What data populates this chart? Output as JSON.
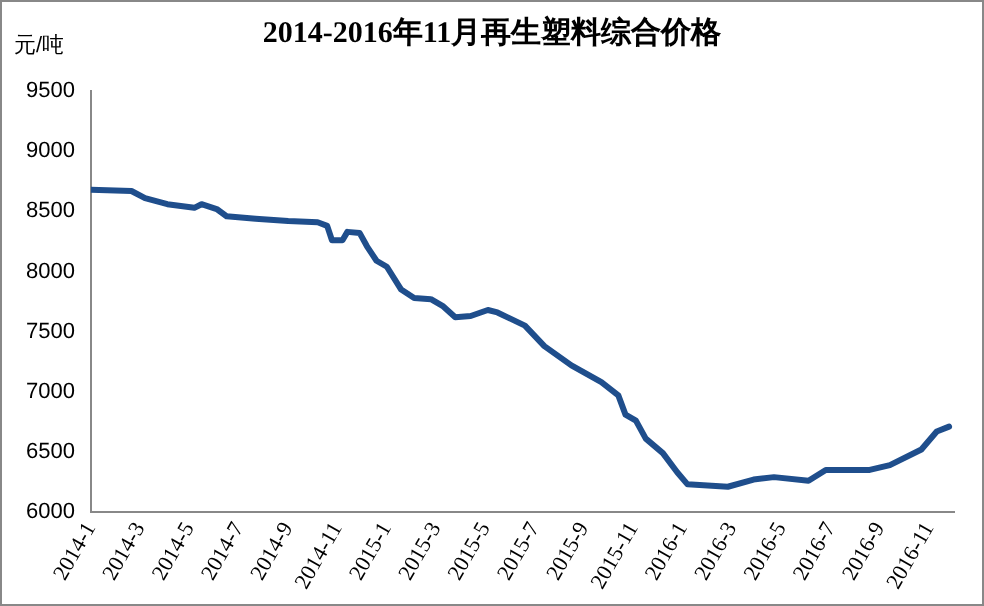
{
  "chart_data": {
    "type": "line",
    "title": "2014-2016年11月再生塑料综合价格",
    "ylabel": "元/吨",
    "x": [
      "2014-01-01",
      "2014-02-19",
      "2014-03-07",
      "2014-04-04",
      "2014-05-07",
      "2014-05-16",
      "2014-06-04",
      "2014-06-16",
      "2014-07-22",
      "2014-09-01",
      "2014-10-07",
      "2014-10-19",
      "2014-10-25",
      "2014-11-07",
      "2014-11-13",
      "2014-11-28",
      "2014-12-07",
      "2014-12-19",
      "2015-01-01",
      "2015-01-19",
      "2015-02-04",
      "2015-02-23",
      "2015-03-10",
      "2015-03-25",
      "2015-04-13",
      "2015-05-04",
      "2015-05-16",
      "2015-06-19",
      "2015-07-13",
      "2015-08-16",
      "2015-09-22",
      "2015-10-13",
      "2015-10-22",
      "2015-11-04",
      "2015-11-16",
      "2015-12-07",
      "2015-12-25",
      "2016-01-07",
      "2016-02-25",
      "2016-03-28",
      "2016-04-22",
      "2016-06-04",
      "2016-06-25",
      "2016-08-19",
      "2016-09-13",
      "2016-10-22",
      "2016-11-10",
      "2016-11-25"
    ],
    "series": [
      {
        "color": "#1f4e8c",
        "values": [
          8680,
          8670,
          8610,
          8560,
          8530,
          8560,
          8520,
          8460,
          8440,
          8420,
          8410,
          8380,
          8260,
          8260,
          8330,
          8320,
          8210,
          8090,
          8040,
          7850,
          7780,
          7770,
          7710,
          7620,
          7630,
          7680,
          7660,
          7550,
          7380,
          7220,
          7080,
          6970,
          6810,
          6760,
          6610,
          6490,
          6330,
          6230,
          6210,
          6270,
          6290,
          6260,
          6350,
          6350,
          6390,
          6520,
          6670,
          6710
        ]
      }
    ],
    "xlim": [
      "2014-01-01",
      "2016-12-01"
    ],
    "xticks": [
      {
        "value": "2014-01",
        "label": "2014-1"
      },
      {
        "value": "2014-03",
        "label": "2014-3"
      },
      {
        "value": "2014-05",
        "label": "2014-5"
      },
      {
        "value": "2014-07",
        "label": "2014-7"
      },
      {
        "value": "2014-09",
        "label": "2014-9"
      },
      {
        "value": "2014-11",
        "label": "2014-11"
      },
      {
        "value": "2015-01",
        "label": "2015-1"
      },
      {
        "value": "2015-03",
        "label": "2015-3"
      },
      {
        "value": "2015-05",
        "label": "2015-5"
      },
      {
        "value": "2015-07",
        "label": "2015-7"
      },
      {
        "value": "2015-09",
        "label": "2015-9"
      },
      {
        "value": "2015-11",
        "label": "2015-11"
      },
      {
        "value": "2016-01",
        "label": "2016-1"
      },
      {
        "value": "2016-03",
        "label": "2016-3"
      },
      {
        "value": "2016-05",
        "label": "2016-5"
      },
      {
        "value": "2016-07",
        "label": "2016-7"
      },
      {
        "value": "2016-09",
        "label": "2016-9"
      },
      {
        "value": "2016-11",
        "label": "2016-11"
      }
    ],
    "ylim": [
      6000,
      9500
    ],
    "yticks": [
      6000,
      6500,
      7000,
      7500,
      8000,
      8500,
      9000,
      9500
    ],
    "grid": false,
    "legend": false,
    "marker": "none",
    "line_style": "solid"
  }
}
